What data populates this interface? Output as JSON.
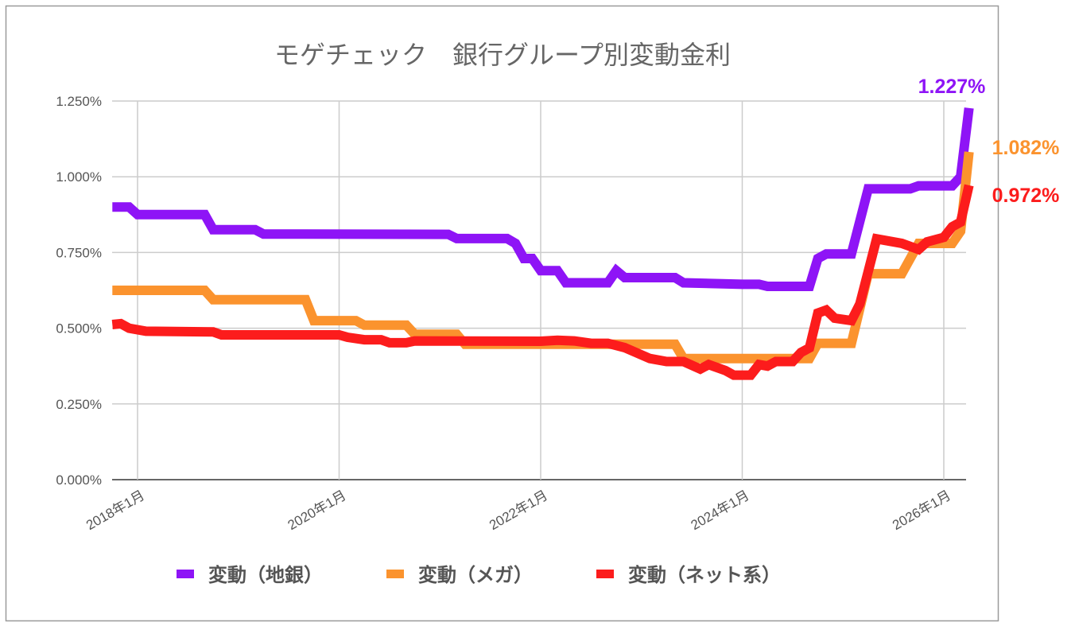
{
  "chart_data": {
    "type": "line",
    "title": "モゲチェック　銀行グループ別変動金利",
    "xlabel": "",
    "ylabel": "",
    "ylim": [
      0,
      1.25
    ],
    "y_ticks": [
      "0.000%",
      "0.250%",
      "0.500%",
      "0.750%",
      "1.000%",
      "1.250%"
    ],
    "y_tick_values": [
      0,
      0.25,
      0.5,
      0.75,
      1.0,
      1.25
    ],
    "x_range": [
      "2017-10",
      "2026-04"
    ],
    "x_ticks": [
      "2018年1月",
      "2020年1月",
      "2022年1月",
      "2024年1月",
      "2026年1月"
    ],
    "x_tick_dates": [
      "2018-01",
      "2020-01",
      "2022-01",
      "2024-01",
      "2026-01"
    ],
    "grid": true,
    "legend_position": "bottom",
    "series": [
      {
        "name": "変動（地銀）",
        "color": "#8E14F6",
        "end_label": "1.227%",
        "points": [
          [
            "2017-10",
            0.9
          ],
          [
            "2017-12",
            0.9
          ],
          [
            "2018-01",
            0.875
          ],
          [
            "2018-09",
            0.875
          ],
          [
            "2018-10",
            0.825
          ],
          [
            "2019-03",
            0.825
          ],
          [
            "2019-04",
            0.811
          ],
          [
            "2021-02",
            0.81
          ],
          [
            "2021-03",
            0.796
          ],
          [
            "2021-09",
            0.796
          ],
          [
            "2021-10",
            0.78
          ],
          [
            "2021-11",
            0.73
          ],
          [
            "2021-12",
            0.73
          ],
          [
            "2022-01",
            0.69
          ],
          [
            "2022-03",
            0.69
          ],
          [
            "2022-04",
            0.65
          ],
          [
            "2022-09",
            0.65
          ],
          [
            "2022-10",
            0.69
          ],
          [
            "2022-11",
            0.667
          ],
          [
            "2023-05",
            0.667
          ],
          [
            "2023-06",
            0.65
          ],
          [
            "2024-01",
            0.645
          ],
          [
            "2024-03",
            0.645
          ],
          [
            "2024-04",
            0.638
          ],
          [
            "2024-09",
            0.638
          ],
          [
            "2024-10",
            0.73
          ],
          [
            "2024-11",
            0.745
          ],
          [
            "2025-02",
            0.745
          ],
          [
            "2025-04",
            0.96
          ],
          [
            "2025-09",
            0.96
          ],
          [
            "2025-10",
            0.97
          ],
          [
            "2026-02",
            0.97
          ],
          [
            "2026-03",
            1.0
          ],
          [
            "2026-04",
            1.227
          ]
        ]
      },
      {
        "name": "変動（メガ）",
        "color": "#FB932E",
        "end_label": "1.082%",
        "points": [
          [
            "2017-10",
            0.625
          ],
          [
            "2018-09",
            0.625
          ],
          [
            "2018-10",
            0.594
          ],
          [
            "2019-09",
            0.594
          ],
          [
            "2019-10",
            0.525
          ],
          [
            "2020-03",
            0.525
          ],
          [
            "2020-04",
            0.51
          ],
          [
            "2020-09",
            0.51
          ],
          [
            "2020-10",
            0.48
          ],
          [
            "2021-03",
            0.48
          ],
          [
            "2021-04",
            0.447
          ],
          [
            "2023-05",
            0.447
          ],
          [
            "2023-06",
            0.4
          ],
          [
            "2024-09",
            0.4
          ],
          [
            "2024-10",
            0.45
          ],
          [
            "2025-02",
            0.45
          ],
          [
            "2025-04",
            0.68
          ],
          [
            "2025-08",
            0.68
          ],
          [
            "2025-10",
            0.78
          ],
          [
            "2026-02",
            0.78
          ],
          [
            "2026-03",
            0.82
          ],
          [
            "2026-04",
            1.082
          ]
        ]
      },
      {
        "name": "変動（ネット系）",
        "color": "#FC1C1C",
        "end_label": "0.972%",
        "points": [
          [
            "2017-10",
            0.512
          ],
          [
            "2017-11",
            0.515
          ],
          [
            "2017-12",
            0.5
          ],
          [
            "2018-02",
            0.49
          ],
          [
            "2018-10",
            0.488
          ],
          [
            "2018-11",
            0.478
          ],
          [
            "2020-01",
            0.478
          ],
          [
            "2020-02",
            0.47
          ],
          [
            "2020-04",
            0.462
          ],
          [
            "2020-06",
            0.462
          ],
          [
            "2020-07",
            0.452
          ],
          [
            "2020-09",
            0.452
          ],
          [
            "2020-10",
            0.458
          ],
          [
            "2022-01",
            0.457
          ],
          [
            "2022-03",
            0.46
          ],
          [
            "2022-05",
            0.458
          ],
          [
            "2022-07",
            0.45
          ],
          [
            "2022-09",
            0.45
          ],
          [
            "2022-11",
            0.436
          ],
          [
            "2023-02",
            0.4
          ],
          [
            "2023-04",
            0.39
          ],
          [
            "2023-06",
            0.39
          ],
          [
            "2023-08",
            0.365
          ],
          [
            "2023-09",
            0.38
          ],
          [
            "2023-11",
            0.36
          ],
          [
            "2023-12",
            0.345
          ],
          [
            "2024-02",
            0.345
          ],
          [
            "2024-03",
            0.38
          ],
          [
            "2024-04",
            0.375
          ],
          [
            "2024-05",
            0.39
          ],
          [
            "2024-07",
            0.39
          ],
          [
            "2024-08",
            0.42
          ],
          [
            "2024-09",
            0.435
          ],
          [
            "2024-10",
            0.55
          ],
          [
            "2024-11",
            0.56
          ],
          [
            "2024-12",
            0.533
          ],
          [
            "2025-02",
            0.525
          ],
          [
            "2025-03",
            0.58
          ],
          [
            "2025-05",
            0.795
          ],
          [
            "2025-06",
            0.79
          ],
          [
            "2025-08",
            0.78
          ],
          [
            "2025-10",
            0.76
          ],
          [
            "2025-11",
            0.785
          ],
          [
            "2026-01",
            0.8
          ],
          [
            "2026-02",
            0.835
          ],
          [
            "2026-03",
            0.85
          ],
          [
            "2026-04",
            0.972
          ]
        ]
      }
    ]
  }
}
